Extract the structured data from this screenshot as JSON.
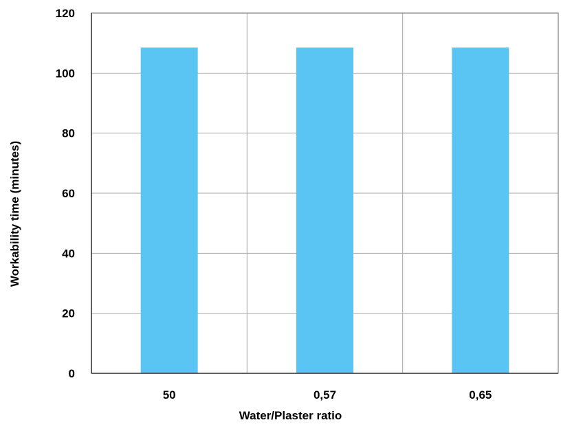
{
  "chart_data": {
    "type": "bar",
    "categories": [
      "50",
      "0,57",
      "0,65"
    ],
    "values": [
      108.5,
      108.5,
      108.5
    ],
    "xlabel": "Water/Plaster ratio",
    "ylabel": "Workability time (minutes)",
    "ylim": [
      0,
      120
    ],
    "yticks": [
      0,
      20,
      40,
      60,
      80,
      100,
      120
    ],
    "grid": true,
    "bar_color": "#5ac4f2",
    "axis_color": "#333333",
    "grid_color": "#a6a6a6"
  }
}
